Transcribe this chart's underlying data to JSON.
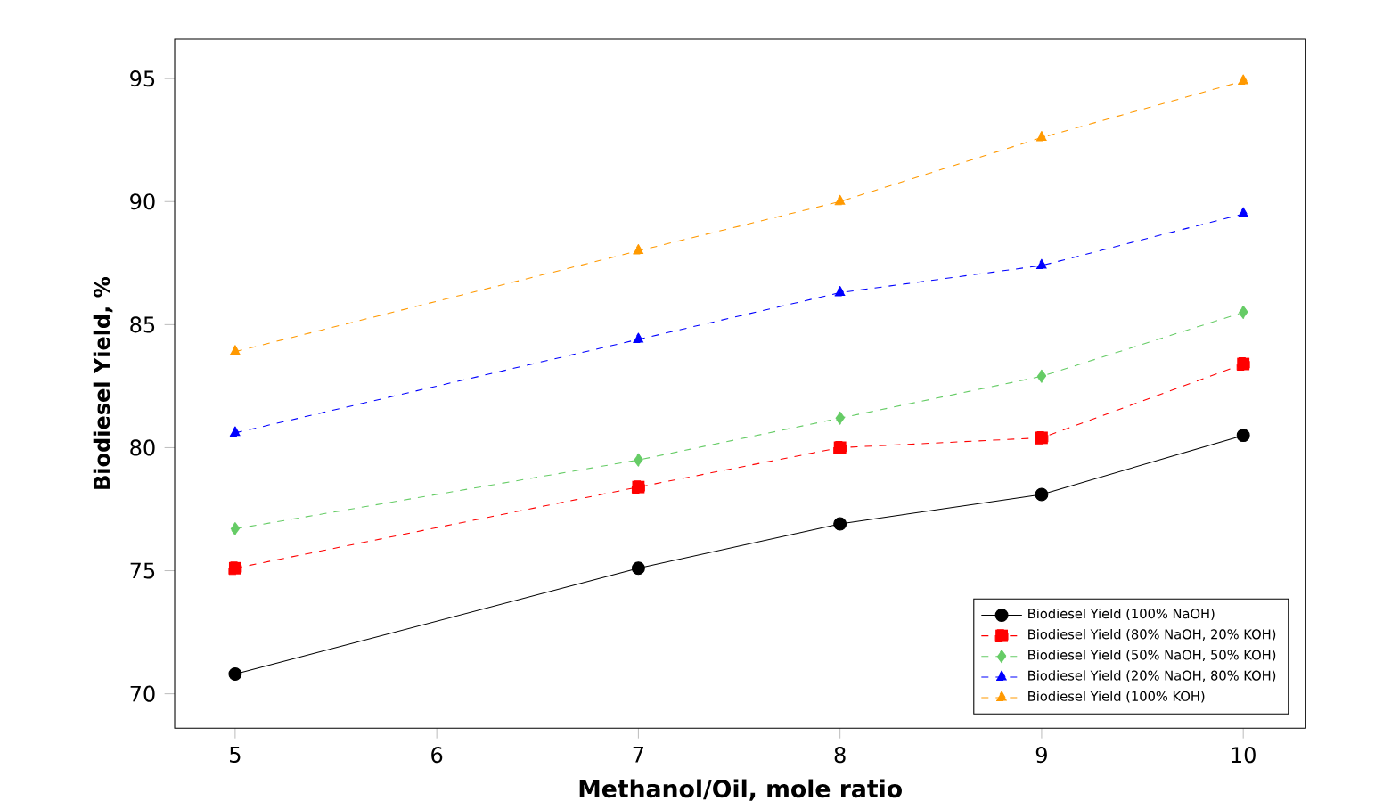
{
  "chart_data": {
    "type": "line",
    "xlabel": "Methanol/Oil,  mole ratio",
    "ylabel": "Biodiesel Yield,  %",
    "x": [
      5,
      7,
      8,
      9,
      10
    ],
    "series": [
      {
        "name": "Biodiesel Yield (100% NaOH)",
        "color": "#000000",
        "marker": "circle",
        "line_style": "solid",
        "values": [
          70.8,
          75.1,
          76.9,
          78.1,
          80.5
        ]
      },
      {
        "name": "Biodiesel Yield (80% NaOH, 20% KOH)",
        "color": "#ff0000",
        "marker": "square",
        "line_style": "dashed",
        "values": [
          75.1,
          78.4,
          80.0,
          80.4,
          83.4
        ]
      },
      {
        "name": "Biodiesel Yield (50% NaOH, 50% KOH)",
        "color": "#66cc66",
        "marker": "diamond",
        "line_style": "dashed",
        "values": [
          76.7,
          79.5,
          81.2,
          82.9,
          85.5
        ]
      },
      {
        "name": "Biodiesel Yield (20% NaOH, 80% KOH)",
        "color": "#0000ff",
        "marker": "triangle",
        "line_style": "dashed",
        "values": [
          80.6,
          84.4,
          86.3,
          87.4,
          89.5
        ]
      },
      {
        "name": "Biodiesel Yield (100% KOH)",
        "color": "#ff9900",
        "marker": "triangle",
        "line_style": "dashed",
        "values": [
          83.9,
          88.0,
          90.0,
          92.6,
          94.9
        ]
      }
    ],
    "xlim": [
      4.7,
      10.31
    ],
    "ylim": [
      68.6,
      96.6
    ],
    "xticks": [
      5,
      6,
      7,
      8,
      9,
      10
    ],
    "yticks": [
      70,
      75,
      80,
      85,
      90,
      95
    ],
    "grid": false,
    "legend": "bottom right"
  }
}
